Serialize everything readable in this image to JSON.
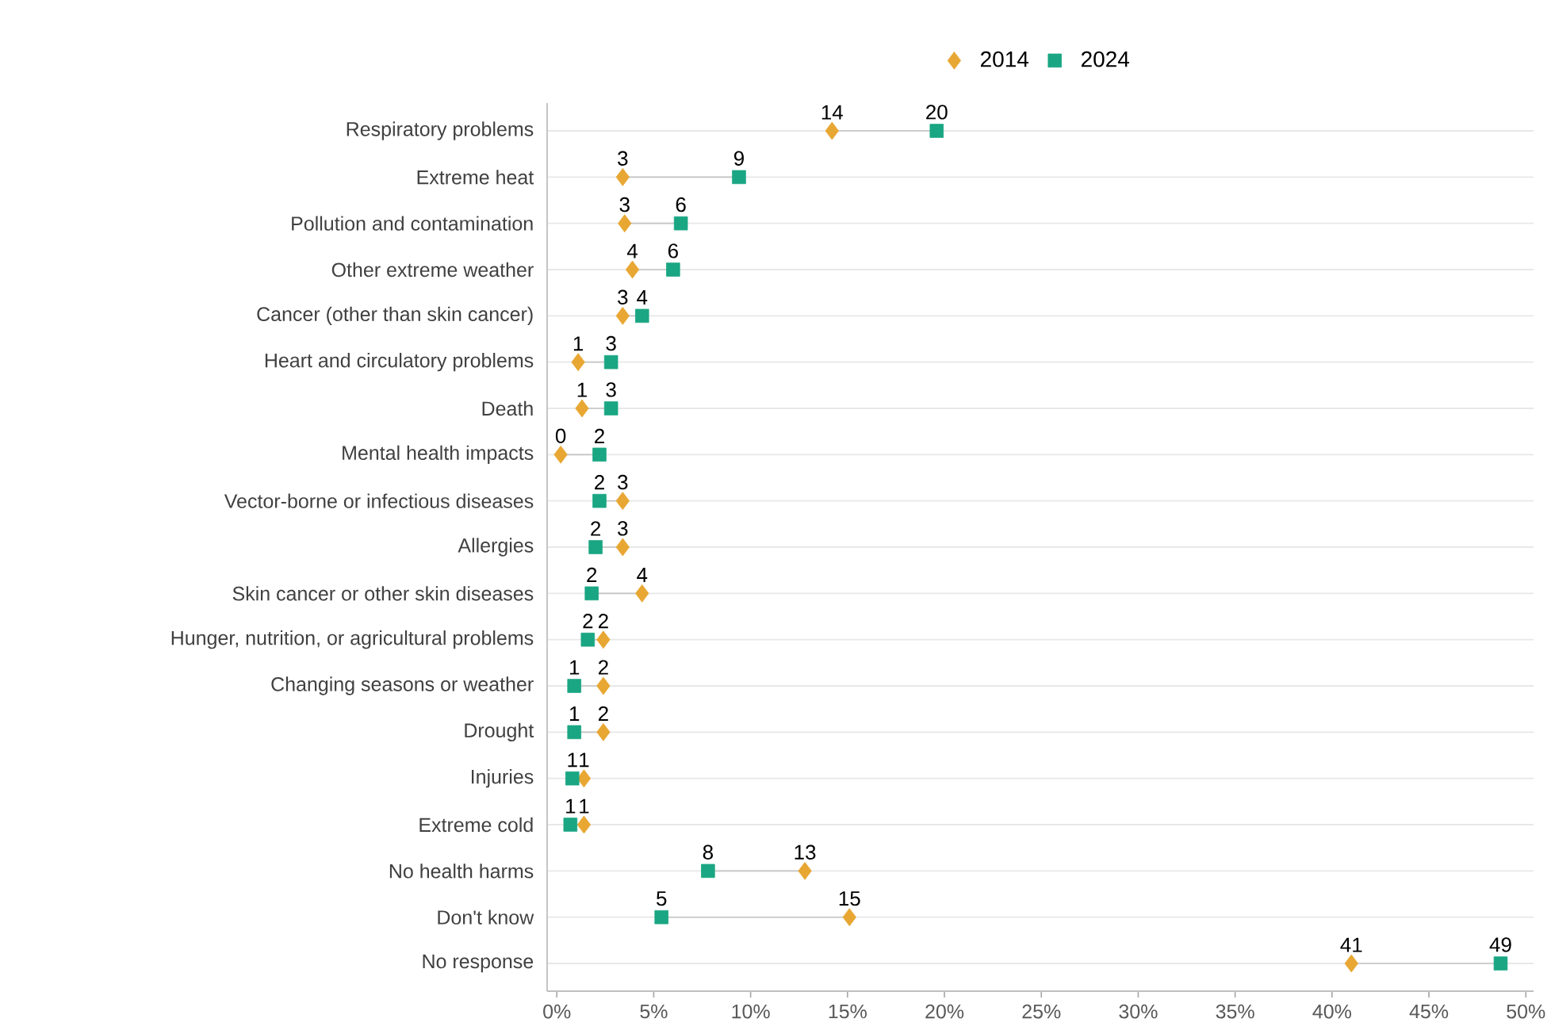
{
  "chart_data": {
    "type": "scatter",
    "categories": [
      "Respiratory problems",
      "Extreme heat",
      "Pollution and contamination",
      "Other extreme weather",
      "Cancer (other than skin cancer)",
      "Heart and circulatory problems",
      "Death",
      "Mental health impacts",
      "Vector-borne or infectious diseases",
      "Allergies",
      "Skin cancer or other skin diseases",
      "Hunger, nutrition, or agricultural problems",
      "Changing seasons or weather",
      "Drought",
      "Injuries",
      "Extreme cold",
      "No health harms",
      "Don't know",
      "No response"
    ],
    "series": [
      {
        "name": "2014",
        "color": "#e8a733",
        "marker": "diamond",
        "values": [
          14.2,
          3.4,
          3.5,
          3.9,
          3.4,
          1.1,
          1.3,
          0.2,
          3.4,
          3.4,
          4.4,
          2.4,
          2.4,
          2.4,
          1.4,
          1.4,
          12.8,
          15.1,
          41.0
        ],
        "value_labels": [
          "14",
          "3",
          "3",
          "4",
          "3",
          "1",
          "1",
          "0",
          "3",
          "3",
          "4",
          "2",
          "2",
          "2",
          "1",
          "1",
          "13",
          "15",
          "41"
        ]
      },
      {
        "name": "2024",
        "color": "#1aa683",
        "marker": "square",
        "values": [
          19.6,
          9.4,
          6.4,
          6.0,
          4.4,
          2.8,
          2.8,
          2.2,
          2.2,
          2.0,
          1.8,
          1.6,
          0.9,
          0.9,
          0.8,
          0.7,
          7.8,
          5.4,
          48.7
        ],
        "value_labels": [
          "20",
          "9",
          "6",
          "6",
          "4",
          "3",
          "3",
          "2",
          "2",
          "2",
          "2",
          "2",
          "1",
          "1",
          "1",
          "1",
          "8",
          "5",
          "49"
        ]
      }
    ],
    "xlim": [
      -0.5,
      50.4
    ],
    "xticks": [
      {
        "value": 0,
        "label": "0%"
      },
      {
        "value": 5,
        "label": "5%"
      },
      {
        "value": 10,
        "label": "10%"
      },
      {
        "value": 15,
        "label": "15%"
      },
      {
        "value": 20,
        "label": "20%"
      },
      {
        "value": 25,
        "label": "25%"
      },
      {
        "value": 30,
        "label": "30%"
      },
      {
        "value": 35,
        "label": "35%"
      },
      {
        "value": 40,
        "label": "40%"
      },
      {
        "value": 45,
        "label": "45%"
      },
      {
        "value": 50,
        "label": "50%"
      }
    ],
    "grid": "y",
    "legend": "top",
    "orientation": "horizontal"
  }
}
